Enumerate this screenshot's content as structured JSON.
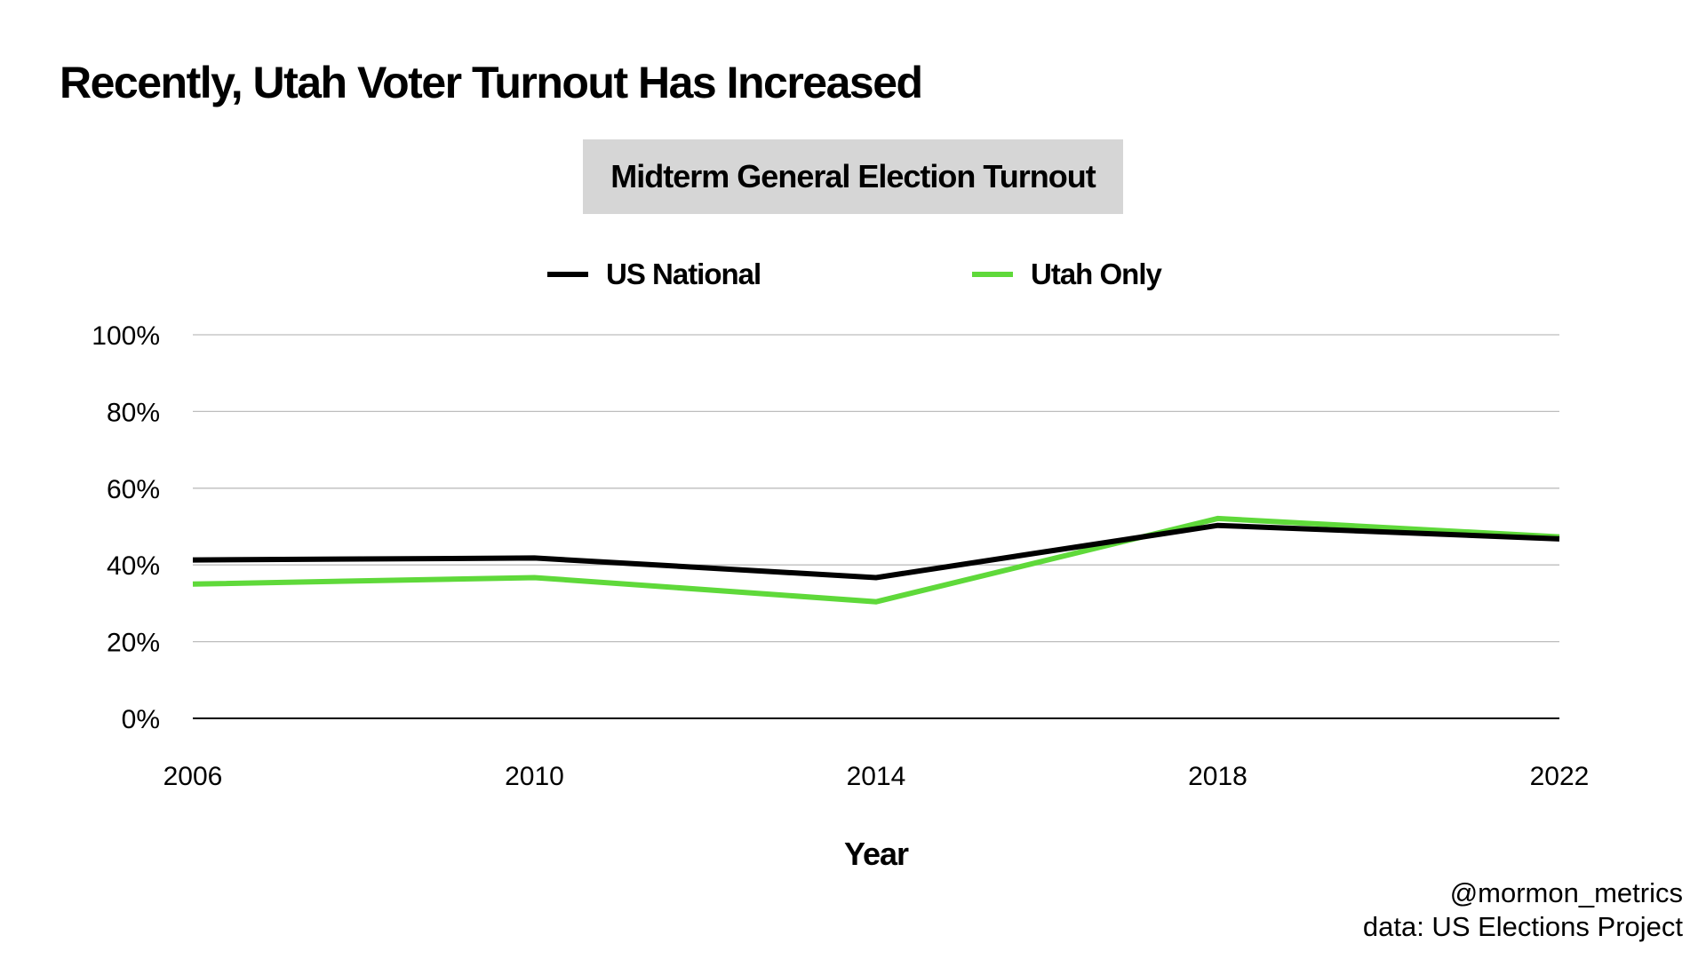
{
  "title": "Recently, Utah Voter Turnout Has Increased",
  "credits": {
    "handle": "@mormon_metrics",
    "source": "data: US Elections Project"
  },
  "chart_data": {
    "type": "line",
    "title": "Midterm General Election Turnout",
    "xlabel": "Year",
    "ylabel": "",
    "x": [
      2006,
      2010,
      2014,
      2018,
      2022
    ],
    "xticks": [
      "2006",
      "2010",
      "2014",
      "2018",
      "2022"
    ],
    "yticks": [
      "0%",
      "20%",
      "40%",
      "60%",
      "80%",
      "100%"
    ],
    "ytick_values": [
      0,
      20,
      40,
      60,
      80,
      100
    ],
    "ylim": [
      0,
      100
    ],
    "grid": true,
    "legend_position": "top-center",
    "series": [
      {
        "name": "US National",
        "color": "#000000",
        "values": [
          41.3,
          41.8,
          36.7,
          50.3,
          46.8
        ]
      },
      {
        "name": "Utah Only",
        "color": "#5fd93a",
        "values": [
          35.0,
          36.7,
          30.4,
          52.1,
          47.3
        ]
      }
    ]
  }
}
